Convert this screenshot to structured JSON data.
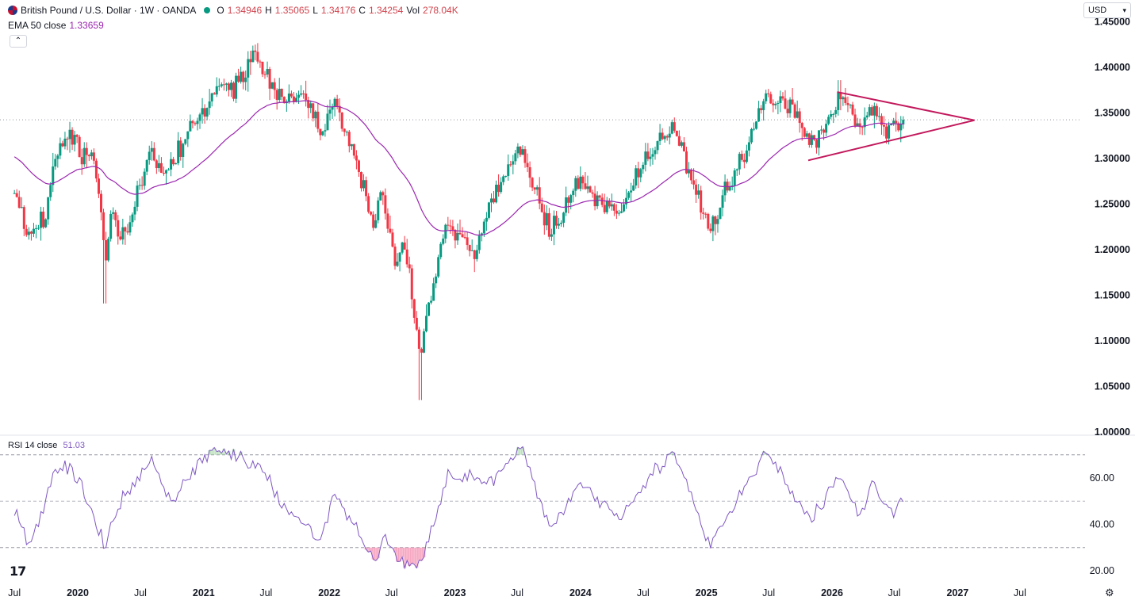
{
  "header": {
    "symbol_title": "British Pound / U.S. Dollar · 1W · OANDA",
    "ohlc": [
      {
        "label": "O",
        "value": "1.34946"
      },
      {
        "label": "H",
        "value": "1.35065"
      },
      {
        "label": "L",
        "value": "1.34176"
      },
      {
        "label": "C",
        "value": "1.34254"
      }
    ],
    "vol_label": "Vol",
    "vol_value": "278.04K",
    "ema_label": "EMA 50 close",
    "ema_value": "1.33659",
    "collapse_icon": "chevron-up-icon",
    "currency_select": "USD"
  },
  "rsi_legend": {
    "label": "RSI 14 close",
    "value": "51.03"
  },
  "colors": {
    "up": "#089981",
    "down": "#f23645",
    "ema": "#9c27b0",
    "triangle": "#c2185b",
    "rsi": "#7e57c2",
    "last_price_line": "#9598a1"
  },
  "chart_data": [
    {
      "type": "candlestick",
      "title": "British Pound / U.S. Dollar · 1W · OANDA",
      "x_tick_labels": [
        "Jul",
        "2020",
        "Jul",
        "2021",
        "Jul",
        "2022",
        "Jul",
        "2023",
        "Jul",
        "2024",
        "Jul",
        "2025",
        "Jul",
        "2026",
        "Jul",
        "2027",
        "Jul"
      ],
      "y_tick_labels": [
        "1.45000",
        "1.40000",
        "1.35000",
        "1.30000",
        "1.25000",
        "1.20000",
        "1.15000",
        "1.10000",
        "1.05000",
        "1.00000"
      ],
      "ylim": [
        1.0,
        1.45
      ],
      "last_close": 1.34254,
      "close_path": [
        {
          "date": "2019-07-01",
          "close": 1.262
        },
        {
          "date": "2019-08-12",
          "close": 1.215
        },
        {
          "date": "2019-10-01",
          "close": 1.235
        },
        {
          "date": "2019-10-21",
          "close": 1.29
        },
        {
          "date": "2019-12-13",
          "close": 1.332
        },
        {
          "date": "2020-01-15",
          "close": 1.305
        },
        {
          "date": "2020-02-21",
          "close": 1.292
        },
        {
          "date": "2020-03-13",
          "close": 1.232
        },
        {
          "date": "2020-03-20",
          "close": 1.165
        },
        {
          "date": "2020-04-03",
          "close": 1.237
        },
        {
          "date": "2020-05-15",
          "close": 1.213
        },
        {
          "date": "2020-06-12",
          "close": 1.248
        },
        {
          "date": "2020-07-31",
          "close": 1.309
        },
        {
          "date": "2020-09-11",
          "close": 1.281
        },
        {
          "date": "2020-12-04",
          "close": 1.343
        },
        {
          "date": "2021-01-15",
          "close": 1.359
        },
        {
          "date": "2021-02-26",
          "close": 1.392
        },
        {
          "date": "2021-03-26",
          "close": 1.376
        },
        {
          "date": "2021-06-01",
          "close": 1.415
        },
        {
          "date": "2021-07-16",
          "close": 1.376
        },
        {
          "date": "2021-08-20",
          "close": 1.362
        },
        {
          "date": "2021-10-29",
          "close": 1.368
        },
        {
          "date": "2021-12-10",
          "close": 1.324
        },
        {
          "date": "2022-01-14",
          "close": 1.368
        },
        {
          "date": "2022-03-11",
          "close": 1.305
        },
        {
          "date": "2022-05-13",
          "close": 1.226
        },
        {
          "date": "2022-05-27",
          "close": 1.262
        },
        {
          "date": "2022-07-15",
          "close": 1.187
        },
        {
          "date": "2022-08-01",
          "close": 1.218
        },
        {
          "date": "2022-09-23",
          "close": 1.085
        },
        {
          "date": "2022-10-28",
          "close": 1.161
        },
        {
          "date": "2022-12-09",
          "close": 1.227
        },
        {
          "date": "2023-03-03",
          "close": 1.195
        },
        {
          "date": "2023-04-14",
          "close": 1.25
        },
        {
          "date": "2023-07-14",
          "close": 1.311
        },
        {
          "date": "2023-10-06",
          "close": 1.218
        },
        {
          "date": "2023-12-29",
          "close": 1.273
        },
        {
          "date": "2024-04-19",
          "close": 1.237
        },
        {
          "date": "2024-07-12",
          "close": 1.299
        },
        {
          "date": "2024-09-27",
          "close": 1.338
        },
        {
          "date": "2025-01-10",
          "close": 1.221
        },
        {
          "date": "2025-04-04",
          "close": 1.293
        },
        {
          "date": "2025-06-27",
          "close": 1.372
        },
        {
          "date": "2025-09-19",
          "close": 1.349
        },
        {
          "date": "2025-11-07",
          "close": 1.312
        },
        {
          "date": "2026-01-23",
          "close": 1.372
        },
        {
          "date": "2026-03-20",
          "close": 1.336
        },
        {
          "date": "2026-05-01",
          "close": 1.357
        },
        {
          "date": "2026-06-19",
          "close": 1.328
        },
        {
          "date": "2026-07-31",
          "close": 1.342
        }
      ],
      "extremes": [
        {
          "date": "2020-03-20",
          "low": 1.141
        },
        {
          "date": "2021-06-01",
          "high": 1.425
        },
        {
          "date": "2022-09-23",
          "low": 1.035
        },
        {
          "date": "2026-01-23",
          "high": 1.386
        }
      ],
      "series": [
        {
          "name": "EMA 50 close",
          "last_value": 1.33659
        }
      ],
      "triangle_pattern": {
        "upper_line": [
          {
            "date": "2026-01-16",
            "price": 1.373
          },
          {
            "date": "2027-02-19",
            "price": 1.342
          }
        ],
        "lower_line": [
          {
            "date": "2025-10-24",
            "price": 1.298
          },
          {
            "date": "2027-02-19",
            "price": 1.342
          }
        ]
      }
    },
    {
      "type": "line",
      "title": "RSI 14 close",
      "y_tick_labels": [
        "60.00",
        "40.00",
        "20.00"
      ],
      "ylim": [
        16.7,
        80.5
      ],
      "reference_levels": [
        70,
        50,
        30
      ],
      "last_value": 51.03,
      "path": [
        {
          "date": "2019-07-01",
          "value": 46
        },
        {
          "date": "2019-08-16",
          "value": 30
        },
        {
          "date": "2019-10-25",
          "value": 62
        },
        {
          "date": "2019-12-13",
          "value": 66
        },
        {
          "date": "2020-03-20",
          "value": 30
        },
        {
          "date": "2020-04-24",
          "value": 46
        },
        {
          "date": "2020-07-31",
          "value": 68
        },
        {
          "date": "2020-09-25",
          "value": 50
        },
        {
          "date": "2021-01-08",
          "value": 70
        },
        {
          "date": "2021-02-26",
          "value": 72
        },
        {
          "date": "2021-06-01",
          "value": 66
        },
        {
          "date": "2021-08-06",
          "value": 51
        },
        {
          "date": "2021-12-10",
          "value": 33
        },
        {
          "date": "2022-01-14",
          "value": 54
        },
        {
          "date": "2022-05-13",
          "value": 24
        },
        {
          "date": "2022-06-10",
          "value": 36
        },
        {
          "date": "2022-07-15",
          "value": 25
        },
        {
          "date": "2022-09-23",
          "value": 21
        },
        {
          "date": "2022-12-09",
          "value": 62
        },
        {
          "date": "2023-04-14",
          "value": 58
        },
        {
          "date": "2023-07-14",
          "value": 72
        },
        {
          "date": "2023-10-06",
          "value": 38
        },
        {
          "date": "2023-12-29",
          "value": 58
        },
        {
          "date": "2024-04-19",
          "value": 44
        },
        {
          "date": "2024-09-27",
          "value": 72
        },
        {
          "date": "2025-01-10",
          "value": 30
        },
        {
          "date": "2025-06-27",
          "value": 72
        },
        {
          "date": "2025-08-22",
          "value": 56
        },
        {
          "date": "2025-11-07",
          "value": 42
        },
        {
          "date": "2026-01-23",
          "value": 62
        },
        {
          "date": "2026-03-27",
          "value": 42
        },
        {
          "date": "2026-05-01",
          "value": 60
        },
        {
          "date": "2026-06-19",
          "value": 44
        },
        {
          "date": "2026-07-31",
          "value": 51
        }
      ]
    }
  ]
}
